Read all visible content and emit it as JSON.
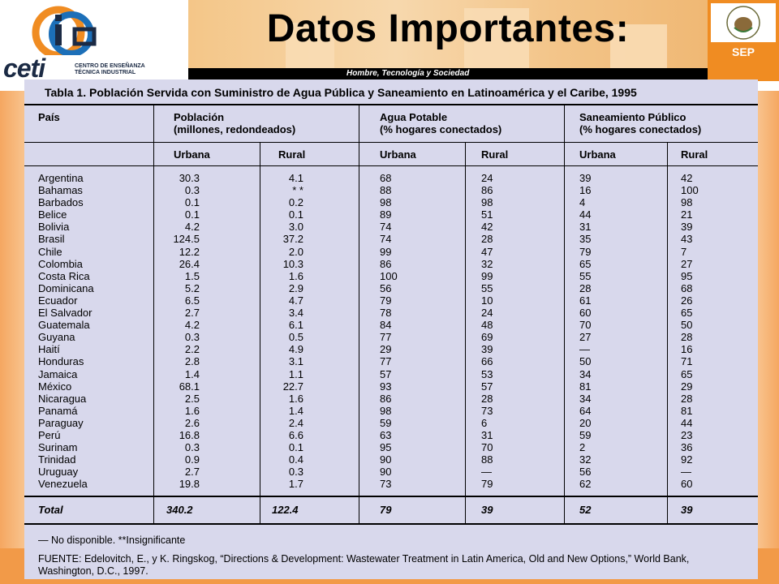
{
  "header": {
    "title": "Datos Importantes:",
    "strip_text": "Hombre, Tecnología y Sociedad",
    "logo_word": "ceti",
    "logo_sub_line1": "CENTRO DE ENSEÑANZA",
    "logo_sub_line2": "TÉCNICA INDUSTRIAL",
    "sep_label": "SEP"
  },
  "table": {
    "caption": "Tabla 1. Población Servida con Suministro de Agua Pública y Saneamiento en Latinoamérica y el Caribe, 1995",
    "headers": {
      "pais": "País",
      "poblacion_1": "Población",
      "poblacion_2": "(millones, redondeados)",
      "agua_1": "Agua Potable",
      "agua_2": "(% hogares conectados)",
      "san_1": "Saneamiento Público",
      "san_2": "(% hogares conectados)",
      "urbana": "Urbana",
      "rural": "Rural"
    },
    "countries": [
      "Argentina",
      "Bahamas",
      "Barbados",
      "Belice",
      "Bolivia",
      "Brasil",
      "Chile",
      "Colombia",
      "Costa Rica",
      "Dominicana",
      "Ecuador",
      "El Salvador",
      "Guatemala",
      "Guyana",
      "Haití",
      "Honduras",
      "Jamaica",
      "México",
      "Nicaragua",
      "Panamá",
      "Paraguay",
      "Perú",
      "Surinam",
      "Trinidad",
      "Uruguay",
      "Venezuela"
    ],
    "pob_urbana": [
      "30.3",
      "0.3",
      "0.1",
      "0.1",
      "4.2",
      "124.5",
      "12.2",
      "26.4",
      "1.5",
      "5.2",
      "6.5",
      "2.7",
      "4.2",
      "0.3",
      "2.2",
      "2.8",
      "1.4",
      "68.1",
      "2.5",
      "1.6",
      "2.6",
      "16.8",
      "0.3",
      "0.9",
      "2.7",
      "19.8"
    ],
    "pob_rural": [
      "4.1",
      "* *",
      "0.2",
      "0.1",
      "3.0",
      "37.2",
      "2.0",
      "10.3",
      "1.6",
      "2.9",
      "4.7",
      "3.4",
      "6.1",
      "0.5",
      "4.9",
      "3.1",
      "1.1",
      "22.7",
      "1.6",
      "1.4",
      "2.4",
      "6.6",
      "0.1",
      "0.4",
      "0.3",
      "1.7"
    ],
    "agua_urbana": [
      "68",
      "88",
      "98",
      "89",
      "74",
      "74",
      "99",
      "86",
      "100",
      "56",
      "79",
      "78",
      "84",
      "77",
      "29",
      "77",
      "57",
      "93",
      "86",
      "98",
      "59",
      "63",
      "95",
      "90",
      "90",
      "73"
    ],
    "agua_rural": [
      "24",
      "86",
      "98",
      "51",
      "42",
      "28",
      "47",
      "32",
      "99",
      "55",
      "10",
      "24",
      "48",
      "69",
      "39",
      "66",
      "53",
      "57",
      "28",
      "73",
      "6",
      "31",
      "70",
      "88",
      "—",
      "79"
    ],
    "san_urbana": [
      "39",
      "16",
      "4",
      "44",
      "31",
      "35",
      "79",
      "65",
      "55",
      "28",
      "61",
      "60",
      "70",
      "27",
      "—",
      "50",
      "34",
      "81",
      "34",
      "64",
      "20",
      "59",
      "2",
      "32",
      "56",
      "62"
    ],
    "san_rural": [
      "42",
      "100",
      "98",
      "21",
      "39",
      "43",
      "7",
      "27",
      "95",
      "68",
      "26",
      "65",
      "50",
      "28",
      "16",
      "71",
      "65",
      "29",
      "28",
      "81",
      "44",
      "23",
      "36",
      "92",
      "—",
      "60"
    ],
    "total": {
      "label": "Total",
      "pob_urbana": "340.2",
      "pob_rural": "122.4",
      "agua_urbana": "79",
      "agua_rural": "39",
      "san_urbana": "52",
      "san_rural": "39"
    },
    "note": "— No disponible. **Insignificante",
    "source_line1": "FUENTE: Edelovitch, E., y K. Ringskog, “Directions & Development: Wastewater Treatment in Latin America, Old and New Options,” World Bank,",
    "source_line2": "Washington, D.C., 1997."
  },
  "colors": {
    "orange": "#f08c22",
    "panel": "#d8d8ec",
    "navy": "#1b2a44",
    "blue": "#1c6fb8"
  }
}
